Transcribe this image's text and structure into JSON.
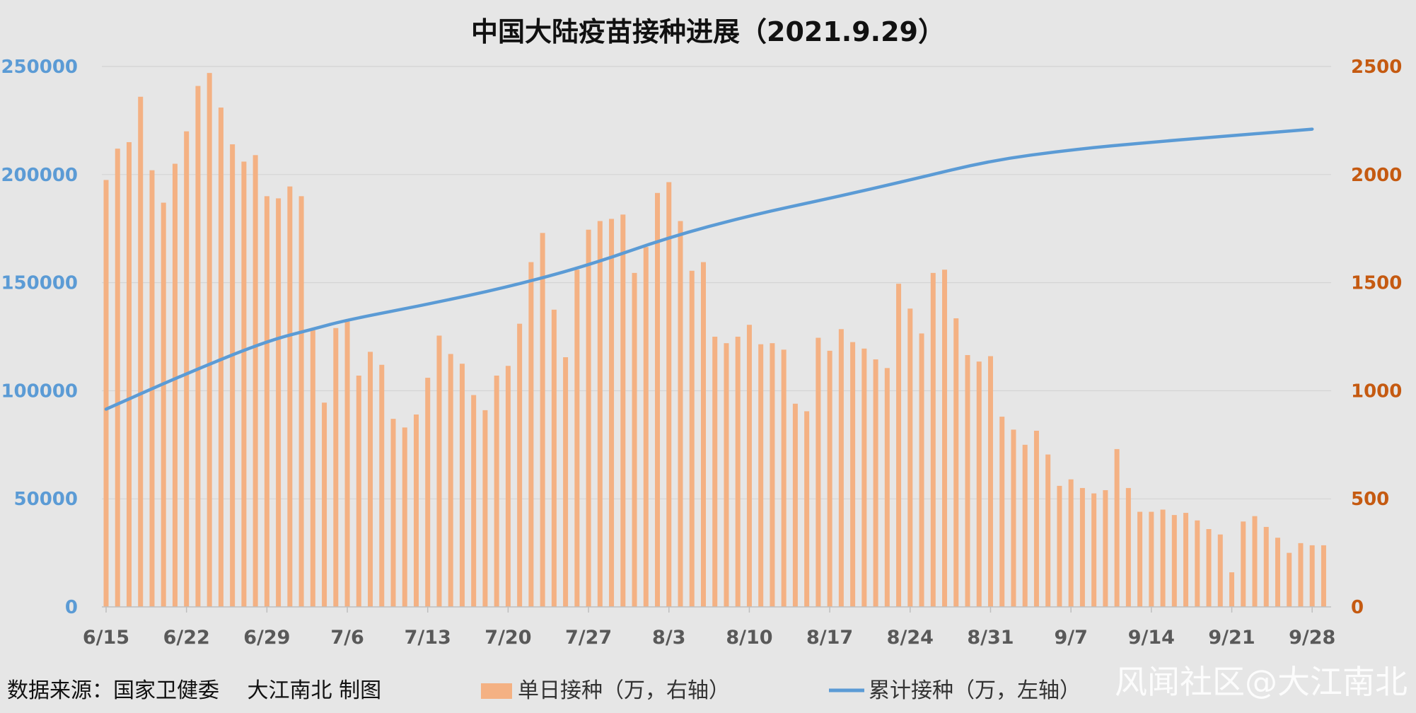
{
  "chart_data": {
    "type": "bar+line",
    "title": "中国大陆疫苗接种进展（2021.9.29）",
    "left_axis": {
      "ylim": [
        0,
        250000
      ],
      "ticks": [
        "0",
        "50000",
        "100000",
        "150000",
        "200000",
        "250000"
      ],
      "color": "#5b9bd5"
    },
    "right_axis": {
      "ylim": [
        0,
        2500
      ],
      "ticks": [
        "0",
        "500",
        "1000",
        "1500",
        "2000",
        "2500"
      ],
      "color": "#c55a11"
    },
    "x_ticks": [
      "6/15",
      "6/22",
      "6/29",
      "7/6",
      "7/13",
      "7/20",
      "7/27",
      "8/3",
      "8/10",
      "8/17",
      "8/24",
      "8/31",
      "9/7",
      "9/14",
      "9/21",
      "9/28"
    ],
    "x_start": "6/15",
    "x_end": "9/28",
    "grid": true,
    "series": [
      {
        "name": "单日接种（万，右轴）",
        "type": "bar",
        "axis": "right",
        "color": "#f4b183",
        "values": [
          1975,
          2120,
          2150,
          2360,
          2020,
          1870,
          2050,
          2200,
          2410,
          2470,
          2310,
          2140,
          2060,
          2090,
          1900,
          1890,
          1945,
          1900,
          1280,
          945,
          1290,
          1320,
          1070,
          1180,
          1120,
          870,
          830,
          890,
          1060,
          1255,
          1170,
          1125,
          980,
          910,
          1070,
          1115,
          1310,
          1595,
          1730,
          1375,
          1155,
          1560,
          1745,
          1785,
          1795,
          1815,
          1545,
          1665,
          1915,
          1965,
          1785,
          1555,
          1595,
          1250,
          1220,
          1250,
          1305,
          1215,
          1220,
          1190,
          940,
          905,
          1245,
          1185,
          1285,
          1225,
          1195,
          1145,
          1105,
          1495,
          1380,
          1265,
          1545,
          1560,
          1335,
          1165,
          1135,
          1160,
          880,
          820,
          750,
          815,
          705,
          560,
          590,
          550,
          525,
          540,
          730,
          550,
          440,
          440,
          450,
          425,
          435,
          400,
          360,
          335,
          160,
          395,
          420,
          370,
          320,
          250,
          295,
          285,
          285
        ]
      },
      {
        "name": "累计接种（万，左轴）",
        "type": "line",
        "axis": "left",
        "color": "#5b9bd5",
        "points": [
          {
            "x": "6/15",
            "y": 91500
          },
          {
            "x": "6/22",
            "y": 108000
          },
          {
            "x": "6/29",
            "y": 123000
          },
          {
            "x": "7/3",
            "y": 128500
          },
          {
            "x": "7/6",
            "y": 132800
          },
          {
            "x": "7/13",
            "y": 140000
          },
          {
            "x": "7/20",
            "y": 148000
          },
          {
            "x": "7/27",
            "y": 158000
          },
          {
            "x": "8/3",
            "y": 171000
          },
          {
            "x": "8/10",
            "y": 181000
          },
          {
            "x": "8/17",
            "y": 189000
          },
          {
            "x": "8/24",
            "y": 197500
          },
          {
            "x": "8/31",
            "y": 206500
          },
          {
            "x": "9/7",
            "y": 211500
          },
          {
            "x": "9/14",
            "y": 215000
          },
          {
            "x": "9/21",
            "y": 218000
          },
          {
            "x": "9/28",
            "y": 221000
          }
        ]
      }
    ]
  },
  "footer": {
    "source": "数据来源：国家卫健委　 大江南北 制图",
    "watermark": "风闻社区@大江南北"
  }
}
